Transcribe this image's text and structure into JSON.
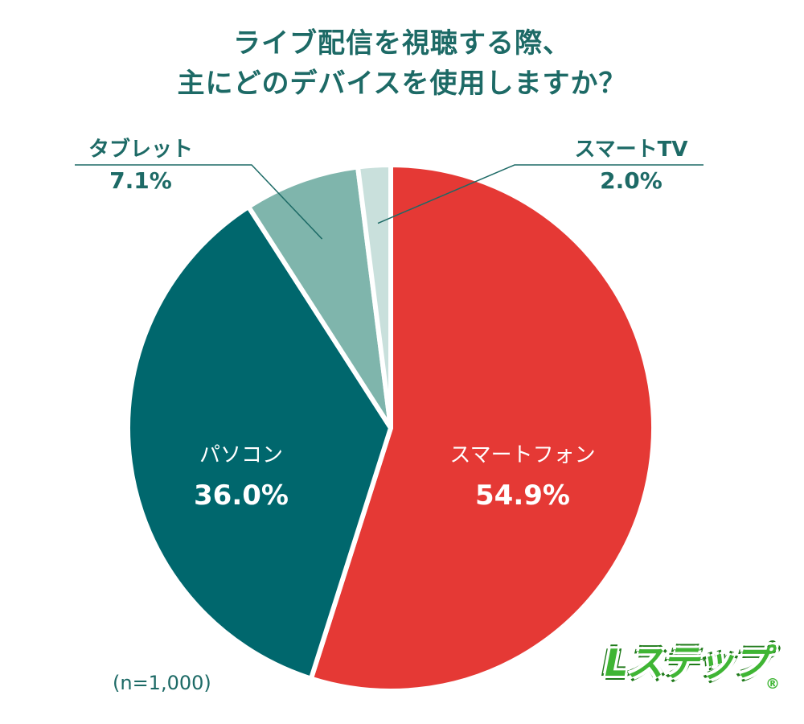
{
  "chart_data": {
    "type": "pie",
    "title_lines": [
      "ライブ配信を視聴する際、",
      "主にどのデバイスを使用しますか？"
    ],
    "slices": [
      {
        "label": "スマートフォン",
        "value": 54.9,
        "value_label": "54.9%",
        "color": "#e53935"
      },
      {
        "label": "パソコン",
        "value": 36.0,
        "value_label": "36.0%",
        "color": "#00676d"
      },
      {
        "label": "タブレット",
        "value": 7.1,
        "value_label": "7.1%",
        "color": "#7fb5ac"
      },
      {
        "label": "スマートTV",
        "value": 2.0,
        "value_label": "2.0%",
        "color": "#c9e0dc"
      }
    ],
    "start": "12 o'clock",
    "direction": "clockwise",
    "note": "(n=1,000)"
  },
  "logo": {
    "text": "Lステップ",
    "reg": "®",
    "color": "#3fb534"
  },
  "colors": {
    "title": "#1d6a66",
    "leader_line": "#1d6a66",
    "separator": "#ffffff"
  }
}
